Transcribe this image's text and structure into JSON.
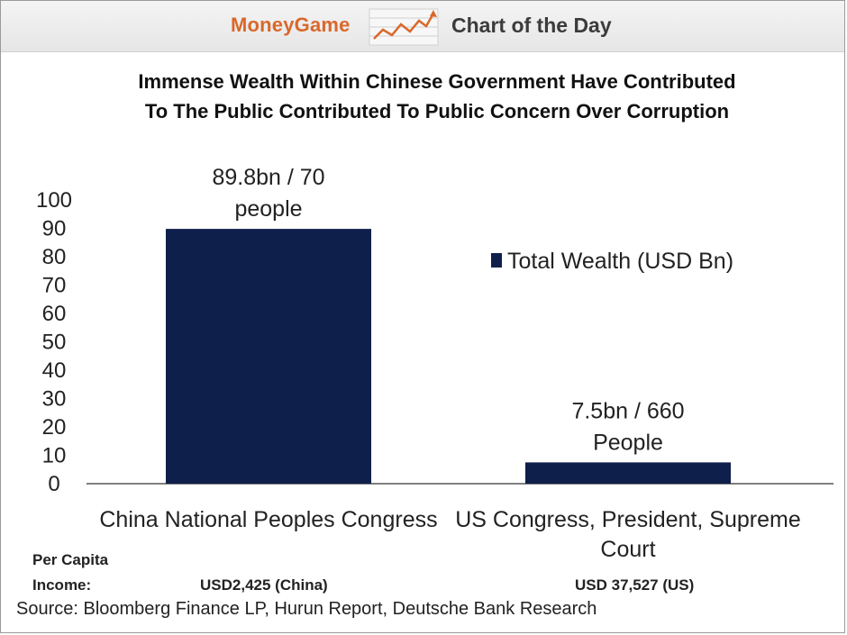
{
  "header": {
    "brand": "MoneyGame",
    "section": "Chart of the Day",
    "logo_icon": "rising-line-chart-icon"
  },
  "title_line1": "Immense Wealth Within Chinese Government Have Contributed",
  "title_line2": "To The Public Contributed To Public Concern Over Corruption",
  "colors": {
    "bar": "#0f1f4b",
    "brand": "#d9682a",
    "header_bg": "#ececec"
  },
  "chart_data": {
    "type": "bar",
    "categories": [
      [
        "China National Peoples Congress"
      ],
      [
        "US Congress, President, Supreme",
        "Court"
      ]
    ],
    "series": [
      {
        "name": "Total Wealth (USD Bn)",
        "values": [
          89.8,
          7.5
        ]
      }
    ],
    "data_labels": [
      [
        "89.8bn / 70",
        "people"
      ],
      [
        "7.5bn / 660",
        "People"
      ]
    ],
    "yticks": [
      0,
      10,
      20,
      30,
      40,
      50,
      60,
      70,
      80,
      90,
      100
    ],
    "ylim": [
      0,
      100
    ],
    "legend_position": "right",
    "grid": false
  },
  "footer": {
    "per_capita_label_1": "Per Capita",
    "per_capita_label_2": "Income:",
    "china_income": "USD2,425 (China)",
    "us_income": "USD 37,527 (US)",
    "source": "Source: Bloomberg Finance LP, Hurun Report, Deutsche Bank Research"
  }
}
